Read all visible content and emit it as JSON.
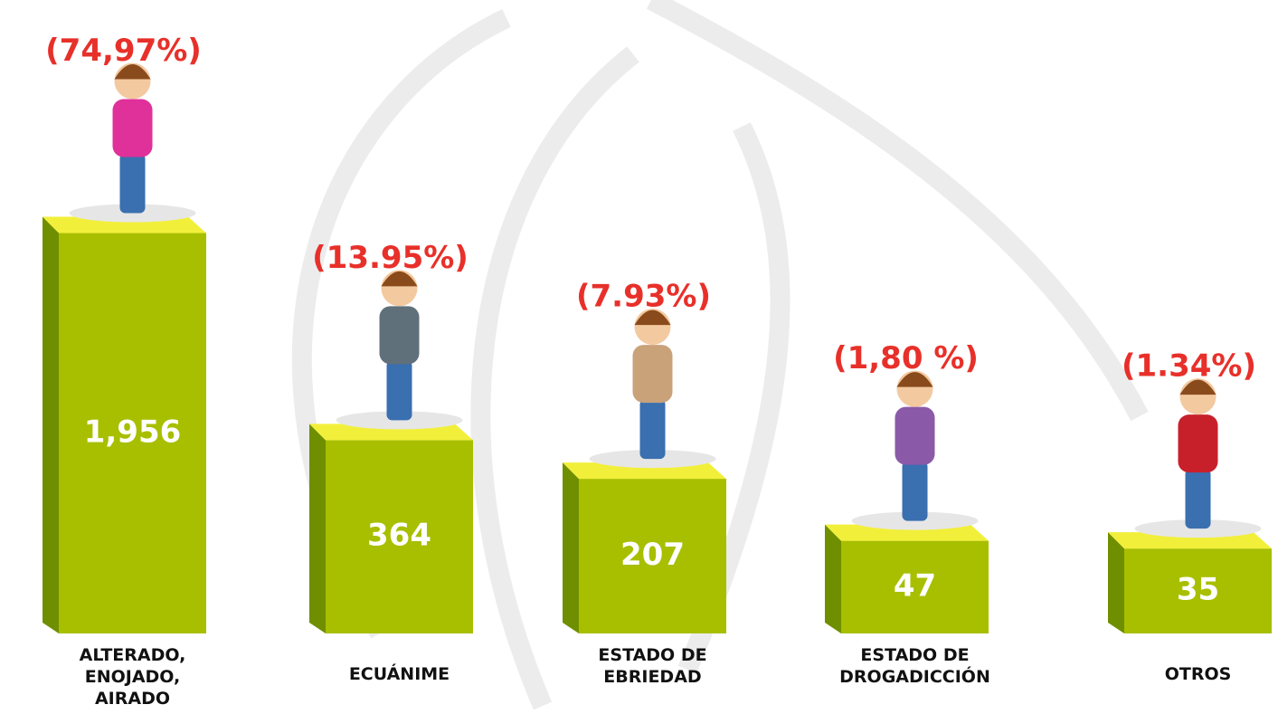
{
  "chart_data": {
    "type": "bar3d",
    "categories": [
      "ALTERADO,\nENOJADO,\nAIRADO",
      "ECUÁNIME",
      "ESTADO DE\nEBRIEDAD",
      "ESTADO DE\nDROGADICCIÓN",
      "OTROS"
    ],
    "values": [
      1956,
      364,
      207,
      47,
      35
    ],
    "value_labels": [
      "1,956",
      "364",
      "207",
      "47",
      "35"
    ],
    "annotations": [
      "(74,97%)",
      "(13.95%)",
      "(7.93%)",
      "(1,80 %)",
      "(1.34%)"
    ],
    "yscale": "sqrt",
    "color": "#a8bf00",
    "side_color": "#6f8f00",
    "top_color": "#f2ef3a",
    "annotation_color": "#e8302a"
  }
}
